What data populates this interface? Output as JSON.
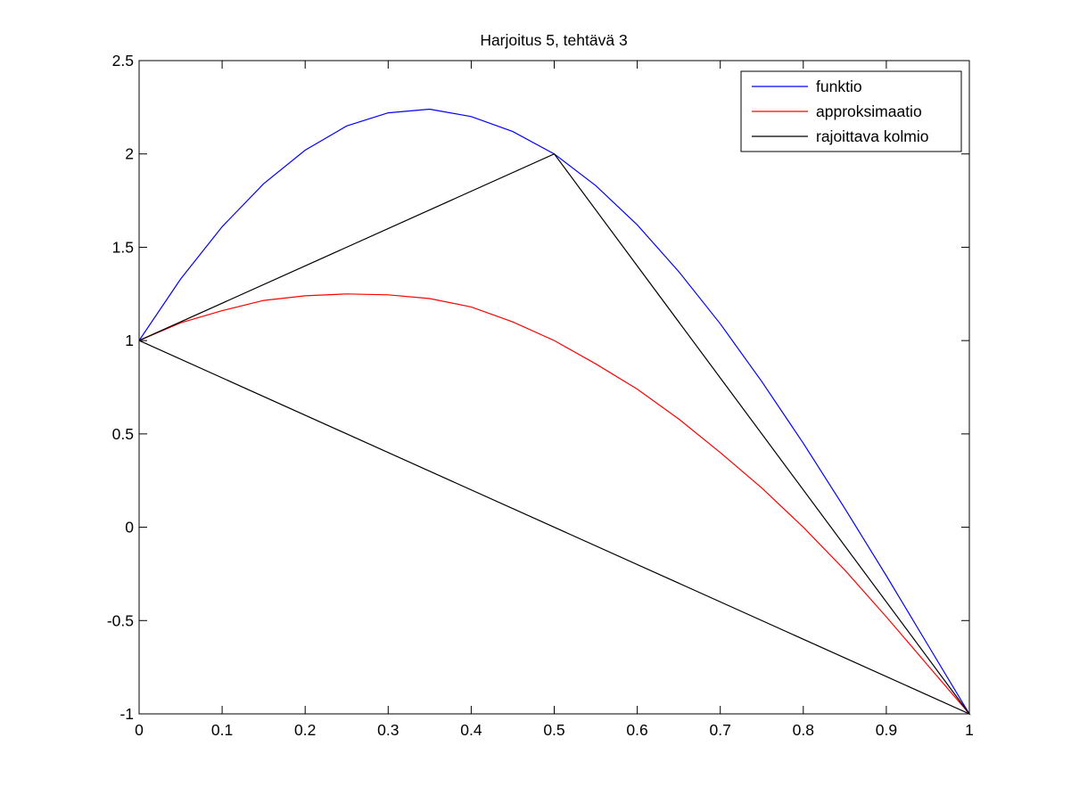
{
  "chart_data": {
    "type": "line",
    "title": "Harjoitus 5, tehtävä 3",
    "xlabel": "",
    "ylabel": "",
    "xlim": [
      0,
      1
    ],
    "ylim": [
      -1,
      2.5
    ],
    "xticks": [
      "0",
      "0.1",
      "0.2",
      "0.3",
      "0.4",
      "0.5",
      "0.6",
      "0.7",
      "0.8",
      "0.9",
      "1"
    ],
    "yticks": [
      "-1",
      "-0.5",
      "0",
      "0.5",
      "1",
      "1.5",
      "2",
      "2.5"
    ],
    "grid": false,
    "legend_position": "top-right",
    "x": [
      0,
      0.05,
      0.1,
      0.15,
      0.2,
      0.25,
      0.3,
      0.35,
      0.4,
      0.45,
      0.5,
      0.55,
      0.6,
      0.65,
      0.7,
      0.75,
      0.8,
      0.85,
      0.9,
      0.95,
      1
    ],
    "series": [
      {
        "name": "funktio",
        "color": "#0000ff",
        "values": [
          1.0,
          1.33,
          1.61,
          1.84,
          2.02,
          2.15,
          2.22,
          2.24,
          2.2,
          2.12,
          2.0,
          1.83,
          1.62,
          1.37,
          1.09,
          0.78,
          0.45,
          0.1,
          -0.26,
          -0.63,
          -1.0
        ]
      },
      {
        "name": "approksimaatio",
        "color": "#ff0000",
        "values": [
          1.0,
          1.095,
          1.16,
          1.215,
          1.24,
          1.25,
          1.245,
          1.225,
          1.18,
          1.1,
          1.0,
          0.875,
          0.74,
          0.58,
          0.4,
          0.21,
          0.0,
          -0.23,
          -0.48,
          -0.74,
          -1.0
        ]
      }
    ],
    "triangle": {
      "name": "rajoittava kolmio",
      "color": "#000000",
      "x": [
        0,
        0.5,
        1,
        0
      ],
      "values": [
        1,
        2,
        -1,
        1
      ]
    }
  }
}
